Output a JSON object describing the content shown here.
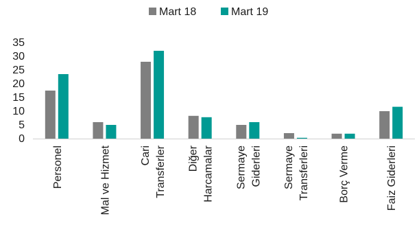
{
  "chart_data": {
    "type": "bar",
    "title": "",
    "xlabel": "",
    "ylabel": "",
    "ylim": [
      0,
      35
    ],
    "yticks": [
      0,
      5,
      10,
      15,
      20,
      25,
      30,
      35
    ],
    "grid": false,
    "legend_position": "top-center",
    "categories": [
      [
        "Personel"
      ],
      [
        "Mal ve Hizmet"
      ],
      [
        "Cari",
        "Transferler"
      ],
      [
        "Diğer",
        "Harcamalar"
      ],
      [
        "Sermaye",
        "Giderleri"
      ],
      [
        "Sermaye",
        "Transferleri"
      ],
      [
        "Borç Verme"
      ],
      [
        "Faiz Giderleri"
      ]
    ],
    "series": [
      {
        "name": "Mart 18",
        "color": "#7f7f7f",
        "values": [
          17.5,
          6,
          28,
          8.3,
          5,
          2,
          1.8,
          10
        ]
      },
      {
        "name": "Mart 19",
        "color": "#009a93",
        "values": [
          23.5,
          5,
          32,
          7.8,
          6,
          0.3,
          1.8,
          11.6
        ]
      }
    ]
  }
}
